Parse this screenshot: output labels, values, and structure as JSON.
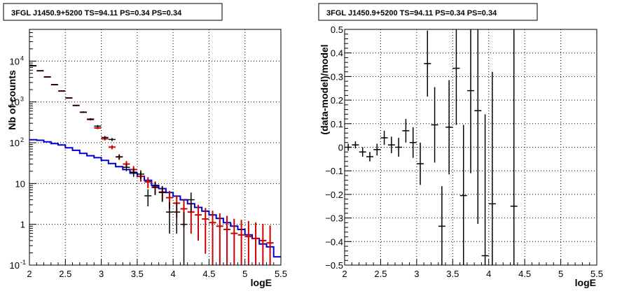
{
  "colors": {
    "data": "#000000",
    "model": "#cc0000",
    "component": "#0000cc",
    "grid": "#000000"
  },
  "chart_data": [
    {
      "type": "line",
      "title": "3FGL J1450.9+5200 TS=94.11 PS=0.34 PS=0.34",
      "xlabel": "logE",
      "ylabel": "Nb of counts",
      "xlim": [
        2,
        5.5
      ],
      "ylim": [
        0.1,
        60000
      ],
      "yscale": "log",
      "grid": true,
      "x_ticks": [
        "2",
        "2.5",
        "3",
        "3.5",
        "4",
        "4.5",
        "5",
        "5.5"
      ],
      "y_ticks": [
        {
          "label": "10",
          "sup": "-1",
          "value": 0.1
        },
        {
          "label": "1",
          "sup": "",
          "value": 1
        },
        {
          "label": "10",
          "sup": "",
          "value": 10
        },
        {
          "label": "10",
          "sup": "2",
          "value": 100
        },
        {
          "label": "10",
          "sup": "3",
          "value": 1000
        },
        {
          "label": "10",
          "sup": "4",
          "value": 10000
        }
      ],
      "series": [
        {
          "kind": "data",
          "x": [
            2.05,
            2.15,
            2.25,
            2.35,
            2.45,
            2.55,
            2.65,
            2.75,
            2.85,
            2.95,
            3.05,
            3.15,
            3.25,
            3.35,
            3.45,
            3.55,
            3.65,
            3.75,
            3.85,
            3.95,
            4.05,
            4.15,
            4.25,
            4.35,
            4.45,
            4.55
          ],
          "y": [
            7700,
            5800,
            4100,
            2650,
            1850,
            1250,
            820,
            560,
            380,
            255,
            135,
            120,
            45,
            25,
            19,
            17,
            5,
            8,
            6,
            2,
            2,
            1,
            4,
            0.1,
            0.1,
            0.1
          ],
          "yerr": [
            88,
            76,
            64,
            51,
            43,
            35,
            29,
            24,
            19.5,
            16,
            11.6,
            11,
            6.7,
            5,
            4.4,
            4.1,
            2.24,
            2.8,
            2.45,
            1.41,
            1.41,
            1,
            2,
            0,
            0,
            0
          ]
        },
        {
          "kind": "model",
          "x": [
            2.05,
            2.15,
            2.25,
            2.35,
            2.45,
            2.55,
            2.65,
            2.75,
            2.85,
            2.95,
            3.05,
            3.15,
            3.25,
            3.35,
            3.45,
            3.55,
            3.65,
            3.75,
            3.85,
            3.95,
            4.05,
            4.15,
            4.25,
            4.35,
            4.45,
            4.55,
            4.65,
            4.75,
            4.85,
            4.95,
            5.05,
            5.15,
            5.25,
            5.35
          ],
          "y": [
            7700,
            5800,
            4100,
            2650,
            1850,
            1250,
            820,
            560,
            370,
            230,
            125,
            78,
            45,
            30,
            22,
            15,
            11,
            8.3,
            6.2,
            4.5,
            3.3,
            2.4,
            2,
            1.7,
            1.35,
            1.1,
            0.9,
            0.75,
            0.6,
            0.55,
            0.5,
            0.45,
            0.4,
            0.35
          ],
          "yerr": [
            88,
            76,
            64,
            51,
            43,
            35,
            29,
            24,
            19.2,
            15.2,
            11.2,
            8.8,
            6.7,
            5.5,
            4.7,
            3.9,
            3.3,
            2.9,
            2.5,
            2.1,
            1.82,
            1.55,
            1.41,
            1.3,
            1.16,
            1.05,
            0.95,
            0.87,
            0.77,
            0.74,
            0.71,
            0.67,
            0.63,
            0.59
          ]
        },
        {
          "kind": "component",
          "edges": [
            2.0,
            2.1,
            2.2,
            2.3,
            2.4,
            2.5,
            2.6,
            2.7,
            2.8,
            2.9,
            3.0,
            3.1,
            3.2,
            3.3,
            3.4,
            3.5,
            3.6,
            3.7,
            3.8,
            3.9,
            4.0,
            4.1,
            4.2,
            4.3,
            4.4,
            4.5,
            4.6,
            4.7,
            4.8,
            4.9,
            5.0,
            5.1,
            5.2,
            5.3,
            5.4,
            5.5
          ],
          "y": [
            118,
            115,
            105,
            95,
            88,
            75,
            65,
            55,
            48,
            43,
            37,
            31,
            26,
            22,
            18,
            15,
            12,
            9,
            7.5,
            6,
            4.9,
            4,
            3.2,
            2.6,
            2.1,
            1.7,
            1.4,
            1.1,
            0.9,
            0.75,
            0.55,
            0.45,
            0.33,
            0.28,
            0.16
          ]
        }
      ]
    },
    {
      "type": "scatter",
      "title": "3FGL J1450.9+5200 TS=94.11 PS=0.34 PS=0.34",
      "xlabel": "logE",
      "ylabel": "(data-model)/model",
      "xlim": [
        2,
        5.5
      ],
      "ylim": [
        -0.5,
        0.5
      ],
      "grid": true,
      "x_ticks": [
        "2",
        "2.5",
        "3",
        "3.5",
        "4",
        "4.5",
        "5",
        "5.5"
      ],
      "y_ticks": [
        "−0.5",
        "−0.4",
        "−0.3",
        "−0.2",
        "−0.1",
        "0",
        "0.1",
        "0.2",
        "0.3",
        "0.4",
        "0.5"
      ],
      "series": [
        {
          "kind": "residuals",
          "x": [
            2.05,
            2.15,
            2.25,
            2.35,
            2.45,
            2.55,
            2.65,
            2.75,
            2.85,
            2.95,
            3.05,
            3.15,
            3.25,
            3.35,
            3.45,
            3.55,
            3.65,
            3.75,
            3.85,
            3.95,
            4.05,
            4.35
          ],
          "y": [
            0.0,
            0.01,
            -0.02,
            -0.04,
            -0.01,
            0.04,
            0.01,
            0.0,
            0.07,
            0.02,
            -0.07,
            0.355,
            0.095,
            -0.335,
            0.085,
            0.335,
            -0.205,
            0.24,
            0.155,
            -0.46,
            -0.24,
            -0.25
          ],
          "yerr": [
            0.015,
            0.015,
            0.02,
            0.02,
            0.025,
            0.03,
            0.035,
            0.04,
            0.05,
            0.065,
            0.09,
            0.14,
            0.16,
            0.17,
            0.2,
            0.24,
            0.3,
            0.35,
            0.48,
            0.6,
            0.56,
            0.8
          ]
        }
      ]
    }
  ]
}
